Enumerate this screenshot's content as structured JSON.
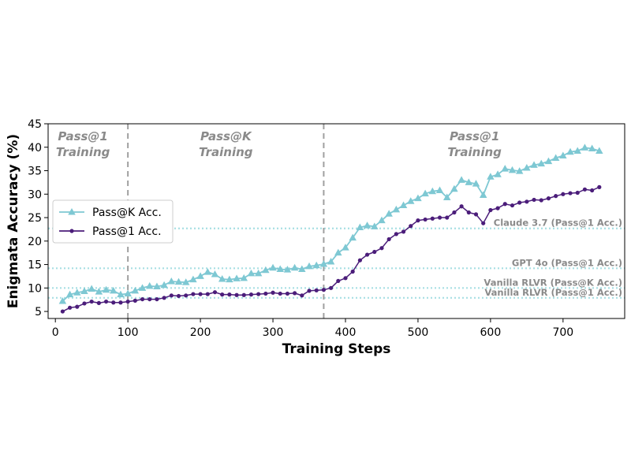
{
  "chart_data": {
    "type": "line",
    "xlabel": "Training Steps",
    "ylabel": "Enigmata Accuracy (%)",
    "xlim": [
      -10,
      785
    ],
    "ylim": [
      3.5,
      45
    ],
    "xticks": [
      0,
      100,
      200,
      300,
      400,
      500,
      600,
      700
    ],
    "yticks": [
      5,
      10,
      15,
      20,
      25,
      30,
      35,
      40,
      45
    ],
    "colors": {
      "passk": "#7ec8d3",
      "pass1": "#4b1d7a",
      "divider": "#a0a0a0",
      "ref": "#a8dfe3"
    },
    "dividers": [
      100,
      370
    ],
    "phases": [
      {
        "x": 38,
        "line1": "Pass@1",
        "line2": "Training"
      },
      {
        "x": 235,
        "line1": "Pass@K",
        "line2": "Training"
      },
      {
        "x": 578,
        "line1": "Pass@1",
        "line2": "Training"
      }
    ],
    "reference_lines": [
      {
        "y": 22.7,
        "label": "Claude 3.7 (Pass@1 Acc.)"
      },
      {
        "y": 14.2,
        "label": "GPT 4o (Pass@1 Acc.)"
      },
      {
        "y": 10.0,
        "label": "Vanilla RLVR (Pass@K Acc.)"
      },
      {
        "y": 7.9,
        "label": "Vanilla RLVR (Pass@1 Acc.)"
      }
    ],
    "legend_position": "center-left",
    "series": [
      {
        "name": "Pass@K Acc.",
        "marker": "triangle",
        "x": [
          10,
          20,
          30,
          40,
          50,
          60,
          70,
          80,
          90,
          100,
          110,
          120,
          130,
          140,
          150,
          160,
          170,
          180,
          190,
          200,
          210,
          220,
          230,
          240,
          250,
          260,
          270,
          280,
          290,
          300,
          310,
          320,
          330,
          340,
          350,
          360,
          370,
          380,
          390,
          400,
          410,
          420,
          430,
          440,
          450,
          460,
          470,
          480,
          490,
          500,
          510,
          520,
          530,
          540,
          550,
          560,
          570,
          580,
          590,
          600,
          610,
          620,
          630,
          640,
          650,
          660,
          670,
          680,
          690,
          700,
          710,
          720,
          730,
          740,
          750
        ],
        "values": [
          7.2,
          8.6,
          9.0,
          9.3,
          9.8,
          9.2,
          9.6,
          9.4,
          8.6,
          8.8,
          9.4,
          10.0,
          10.4,
          10.3,
          10.6,
          11.4,
          11.3,
          11.2,
          11.8,
          12.5,
          13.4,
          12.9,
          11.9,
          11.8,
          12.0,
          12.1,
          13.1,
          13.1,
          13.8,
          14.3,
          14.0,
          13.9,
          14.3,
          14.0,
          14.6,
          14.8,
          15.1,
          15.6,
          17.5,
          18.6,
          20.7,
          22.9,
          23.3,
          23.1,
          24.4,
          25.8,
          26.7,
          27.6,
          28.5,
          29.1,
          30.1,
          30.6,
          30.8,
          29.3,
          31.1,
          33.0,
          32.5,
          32.2,
          29.8,
          33.7,
          34.2,
          35.4,
          35.1,
          34.9,
          35.6,
          36.2,
          36.5,
          37.0,
          37.7,
          38.2,
          39.0,
          39.2,
          39.9,
          39.7,
          39.2
        ]
      },
      {
        "name": "Pass@1 Acc.",
        "marker": "circle",
        "x": [
          10,
          20,
          30,
          40,
          50,
          60,
          70,
          80,
          90,
          100,
          110,
          120,
          130,
          140,
          150,
          160,
          170,
          180,
          190,
          200,
          210,
          220,
          230,
          240,
          250,
          260,
          270,
          280,
          290,
          300,
          310,
          320,
          330,
          340,
          350,
          360,
          370,
          380,
          390,
          400,
          410,
          420,
          430,
          440,
          450,
          460,
          470,
          480,
          490,
          500,
          510,
          520,
          530,
          540,
          550,
          560,
          570,
          580,
          590,
          600,
          610,
          620,
          630,
          640,
          650,
          660,
          670,
          680,
          690,
          700,
          710,
          720,
          730,
          740,
          750
        ],
        "values": [
          5.0,
          5.8,
          6.0,
          6.7,
          7.1,
          6.8,
          7.1,
          6.9,
          6.9,
          7.1,
          7.3,
          7.6,
          7.6,
          7.6,
          7.9,
          8.4,
          8.3,
          8.4,
          8.7,
          8.7,
          8.7,
          9.1,
          8.6,
          8.6,
          8.5,
          8.5,
          8.6,
          8.7,
          8.8,
          9.0,
          8.8,
          8.8,
          8.9,
          8.4,
          9.4,
          9.5,
          9.6,
          10.0,
          11.5,
          12.1,
          13.5,
          15.9,
          17.1,
          17.7,
          18.5,
          20.4,
          21.5,
          22.0,
          23.2,
          24.4,
          24.6,
          24.8,
          25.0,
          25.0,
          26.1,
          27.4,
          26.1,
          25.7,
          23.8,
          26.6,
          27.0,
          27.9,
          27.6,
          28.2,
          28.4,
          28.8,
          28.7,
          29.1,
          29.6,
          30.0,
          30.2,
          30.3,
          31.0,
          30.8,
          31.5
        ]
      }
    ]
  }
}
